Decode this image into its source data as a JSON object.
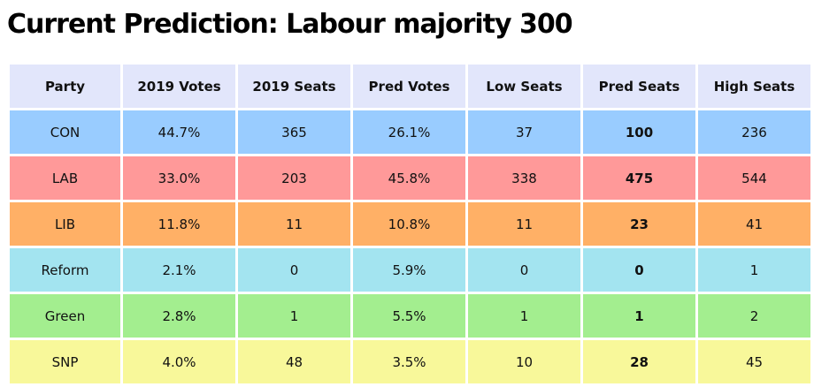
{
  "page": {
    "title": "Current Prediction: Labour majority 300"
  },
  "table": {
    "headers": [
      "Party",
      "2019 Votes",
      "2019 Seats",
      "Pred Votes",
      "Low Seats",
      "Pred Seats",
      "High Seats"
    ],
    "rows": [
      {
        "color": "#99ccff",
        "cells": [
          "CON",
          "44.7%",
          "365",
          "26.1%",
          "37",
          "100",
          "236"
        ]
      },
      {
        "color": "#ff9999",
        "cells": [
          "LAB",
          "33.0%",
          "203",
          "45.8%",
          "338",
          "475",
          "544"
        ]
      },
      {
        "color": "#ffb066",
        "cells": [
          "LIB",
          "11.8%",
          "11",
          "10.8%",
          "11",
          "23",
          "41"
        ]
      },
      {
        "color": "#a3e4f0",
        "cells": [
          "Reform",
          "2.1%",
          "0",
          "5.9%",
          "0",
          "0",
          "1"
        ]
      },
      {
        "color": "#a3ee8f",
        "cells": [
          "Green",
          "2.8%",
          "1",
          "5.5%",
          "1",
          "1",
          "2"
        ]
      },
      {
        "color": "#f8f89a",
        "cells": [
          "SNP",
          "4.0%",
          "48",
          "3.5%",
          "10",
          "28",
          "45"
        ]
      }
    ]
  }
}
